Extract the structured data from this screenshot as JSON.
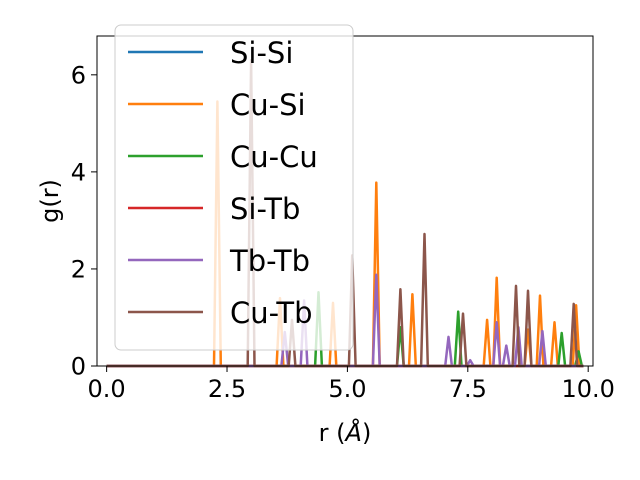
{
  "chart_data": {
    "type": "line",
    "xlabel": "r (",
    "xlabel_unit": "Å",
    "xlabel_close": ")",
    "ylabel": "g(r)",
    "xlim": [
      -0.2,
      10.1
    ],
    "ylim": [
      0,
      6.8
    ],
    "x_ticks": [
      {
        "value": 0.0,
        "label": "0.0"
      },
      {
        "value": 2.5,
        "label": "2.5"
      },
      {
        "value": 5.0,
        "label": "5.0"
      },
      {
        "value": 7.5,
        "label": "7.5"
      },
      {
        "value": 10.0,
        "label": "10.0"
      }
    ],
    "y_ticks": [
      {
        "value": 0,
        "label": "0"
      },
      {
        "value": 2,
        "label": "2"
      },
      {
        "value": 4,
        "label": "4"
      },
      {
        "value": 6,
        "label": "6"
      }
    ],
    "grid": false,
    "legend_position": "top-left",
    "peak_halfwidth": 0.07,
    "series": [
      {
        "name": "Si-Si",
        "color": "#1f77b4",
        "peaks": []
      },
      {
        "name": "Cu-Si",
        "color": "#ff7f0e",
        "peaks": [
          [
            2.3,
            5.45
          ],
          [
            3.6,
            1.4
          ],
          [
            4.7,
            1.3
          ],
          [
            5.6,
            3.78
          ],
          [
            6.35,
            1.48
          ],
          [
            7.9,
            0.95
          ],
          [
            8.1,
            1.82
          ],
          [
            8.75,
            0.75
          ],
          [
            9.0,
            1.45
          ],
          [
            9.3,
            0.9
          ],
          [
            9.75,
            1.25
          ]
        ]
      },
      {
        "name": "Cu-Cu",
        "color": "#2ca02c",
        "peaks": [
          [
            4.4,
            1.52
          ],
          [
            6.1,
            0.8
          ],
          [
            7.3,
            1.12
          ],
          [
            9.45,
            0.68
          ],
          [
            9.8,
            0.3
          ]
        ]
      },
      {
        "name": "Si-Tb",
        "color": "#d62728",
        "peaks": []
      },
      {
        "name": "Tb-Tb",
        "color": "#9467bd",
        "peaks": [
          [
            3.7,
            0.7
          ],
          [
            4.1,
            1.35
          ],
          [
            5.6,
            1.88
          ],
          [
            7.1,
            0.6
          ],
          [
            7.55,
            0.12
          ],
          [
            8.1,
            0.9
          ],
          [
            8.3,
            0.42
          ],
          [
            8.55,
            0.8
          ],
          [
            9.05,
            0.72
          ]
        ]
      },
      {
        "name": "Cu-Tb",
        "color": "#8c564b",
        "peaks": [
          [
            3.0,
            6.3
          ],
          [
            3.85,
            0.95
          ],
          [
            5.1,
            2.28
          ],
          [
            6.1,
            1.58
          ],
          [
            6.6,
            2.72
          ],
          [
            7.4,
            1.08
          ],
          [
            8.5,
            1.65
          ],
          [
            8.75,
            1.55
          ],
          [
            9.7,
            1.28
          ]
        ]
      }
    ]
  }
}
